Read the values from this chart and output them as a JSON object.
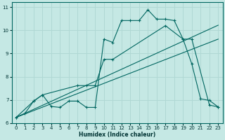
{
  "xlabel": "Humidex (Indice chaleur)",
  "xlim": [
    -0.5,
    23.5
  ],
  "ylim": [
    6,
    11.2
  ],
  "yticks": [
    6,
    7,
    8,
    9,
    10,
    11
  ],
  "xticks": [
    0,
    1,
    2,
    3,
    4,
    5,
    6,
    7,
    8,
    9,
    10,
    11,
    12,
    13,
    14,
    15,
    16,
    17,
    18,
    19,
    20,
    21,
    22,
    23
  ],
  "bg_color": "#c5e8e4",
  "line_color": "#006660",
  "grid_color": "#b0d8d4",
  "line1_x": [
    0,
    1,
    2,
    3,
    4,
    5,
    6,
    7,
    8,
    9,
    10,
    11,
    12,
    13,
    14,
    15,
    16,
    17,
    18,
    19,
    20,
    21,
    22,
    23
  ],
  "line1_y": [
    6.25,
    6.42,
    6.95,
    7.22,
    6.72,
    6.68,
    6.95,
    6.95,
    6.68,
    6.68,
    9.62,
    9.48,
    10.42,
    10.42,
    10.42,
    10.88,
    10.48,
    10.48,
    10.42,
    9.62,
    8.55,
    7.05,
    6.98,
    6.7
  ],
  "line2_x": [
    0,
    2,
    3,
    7,
    8,
    9,
    10,
    11,
    17,
    19,
    20,
    22,
    23
  ],
  "line2_y": [
    6.25,
    6.95,
    7.22,
    7.62,
    7.62,
    7.62,
    8.75,
    8.75,
    10.2,
    9.62,
    9.62,
    6.78,
    6.7
  ],
  "line3_x": [
    0,
    23
  ],
  "line3_y": [
    6.25,
    10.22
  ],
  "line4_x": [
    0,
    23
  ],
  "line4_y": [
    6.25,
    9.62
  ]
}
